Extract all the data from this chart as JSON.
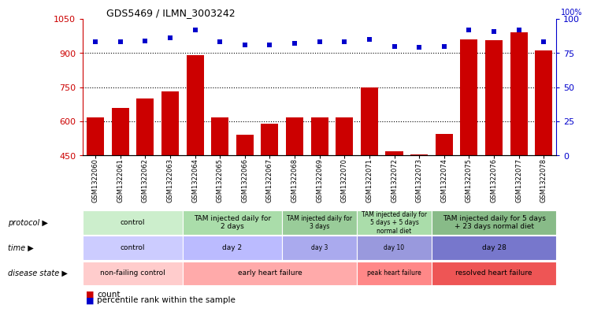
{
  "title": "GDS5469 / ILMN_3003242",
  "samples": [
    "GSM1322060",
    "GSM1322061",
    "GSM1322062",
    "GSM1322063",
    "GSM1322064",
    "GSM1322065",
    "GSM1322066",
    "GSM1322067",
    "GSM1322068",
    "GSM1322069",
    "GSM1322070",
    "GSM1322071",
    "GSM1322072",
    "GSM1322073",
    "GSM1322074",
    "GSM1322075",
    "GSM1322076",
    "GSM1322077",
    "GSM1322078"
  ],
  "counts": [
    618,
    658,
    700,
    730,
    890,
    618,
    543,
    590,
    618,
    618,
    618,
    748,
    470,
    455,
    545,
    960,
    955,
    990,
    910
  ],
  "percentiles": [
    83,
    83,
    84,
    86,
    92,
    83,
    81,
    81,
    82,
    83,
    83,
    85,
    80,
    79,
    80,
    92,
    91,
    92,
    83
  ],
  "ylim_left": [
    450,
    1050
  ],
  "ylim_right": [
    0,
    100
  ],
  "yticks_left": [
    450,
    600,
    750,
    900,
    1050
  ],
  "yticks_right": [
    0,
    25,
    50,
    75,
    100
  ],
  "bar_color": "#cc0000",
  "dot_color": "#0000cc",
  "protocol_groups": [
    {
      "label": "control",
      "start": 0,
      "end": 4,
      "color": "#cceecc"
    },
    {
      "label": "TAM injected daily for\n2 days",
      "start": 4,
      "end": 8,
      "color": "#aaddaa"
    },
    {
      "label": "TAM injected daily for\n3 days",
      "start": 8,
      "end": 11,
      "color": "#99cc99"
    },
    {
      "label": "TAM injected daily for\n5 days + 5 days\nnormal diet",
      "start": 11,
      "end": 14,
      "color": "#aaddaa"
    },
    {
      "label": "TAM injected daily for 5 days\n+ 23 days normal diet",
      "start": 14,
      "end": 19,
      "color": "#88bb88"
    }
  ],
  "time_groups": [
    {
      "label": "control",
      "start": 0,
      "end": 4,
      "color": "#ccccff"
    },
    {
      "label": "day 2",
      "start": 4,
      "end": 8,
      "color": "#bbbbff"
    },
    {
      "label": "day 3",
      "start": 8,
      "end": 11,
      "color": "#aaaaee"
    },
    {
      "label": "day 10",
      "start": 11,
      "end": 14,
      "color": "#9999dd"
    },
    {
      "label": "day 28",
      "start": 14,
      "end": 19,
      "color": "#7777cc"
    }
  ],
  "disease_groups": [
    {
      "label": "non-failing control",
      "start": 0,
      "end": 4,
      "color": "#ffcccc"
    },
    {
      "label": "early heart failure",
      "start": 4,
      "end": 11,
      "color": "#ffaaaa"
    },
    {
      "label": "peak heart failure",
      "start": 11,
      "end": 14,
      "color": "#ff8888"
    },
    {
      "label": "resolved heart failure",
      "start": 14,
      "end": 19,
      "color": "#ee5555"
    }
  ],
  "row_labels": [
    "protocol",
    "time",
    "disease state"
  ],
  "legend_items": [
    "count",
    "percentile rank within the sample"
  ]
}
